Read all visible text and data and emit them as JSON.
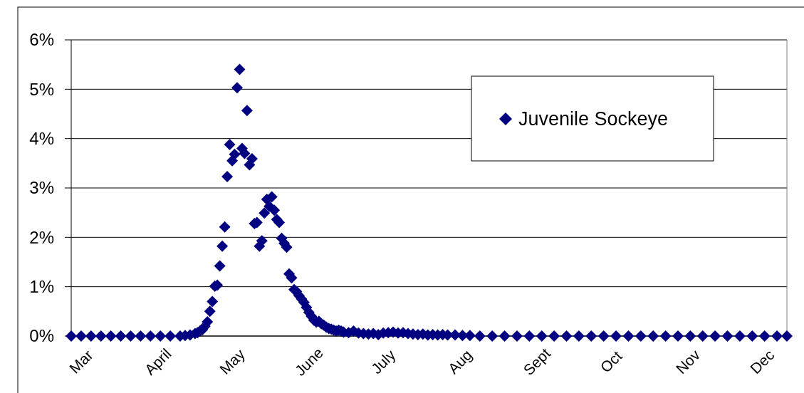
{
  "chart_data": {
    "type": "scatter",
    "marker": "diamond",
    "grid": "y",
    "legend": "top right",
    "xlim": [
      "--03-01",
      "--12-15"
    ],
    "xticks": [
      {
        "value": "--03-05",
        "label": "Mar"
      },
      {
        "value": "--04-05",
        "label": "April"
      },
      {
        "value": "--05-05",
        "label": "May"
      },
      {
        "value": "--06-05",
        "label": "June"
      },
      {
        "value": "--07-05",
        "label": "July"
      },
      {
        "value": "--08-05",
        "label": "Aug"
      },
      {
        "value": "--09-05",
        "label": "Sept"
      },
      {
        "value": "--10-05",
        "label": "Oct"
      },
      {
        "value": "--11-05",
        "label": "Nov"
      },
      {
        "value": "--12-05",
        "label": "Dec"
      }
    ],
    "ylim": [
      0,
      6
    ],
    "yticks": [
      {
        "value": 0,
        "label": "0%"
      },
      {
        "value": 1,
        "label": "1%"
      },
      {
        "value": 2,
        "label": "2%"
      },
      {
        "value": 3,
        "label": "3%"
      },
      {
        "value": 4,
        "label": "4%"
      },
      {
        "value": 5,
        "label": "5%"
      },
      {
        "value": 6,
        "label": "6%"
      }
    ],
    "series": [
      {
        "name": "Juvenile Sockeye",
        "color": "#000080",
        "x": [
          "--03-01",
          "--03-05",
          "--03-09",
          "--03-13",
          "--03-17",
          "--03-21",
          "--03-25",
          "--03-29",
          "--04-02",
          "--04-06",
          "--04-10",
          "--04-14",
          "--04-16",
          "--04-18",
          "--04-20",
          "--04-21",
          "--04-22",
          "--04-23",
          "--04-24",
          "--04-25",
          "--04-26",
          "--04-27",
          "--04-28",
          "--04-29",
          "--04-30",
          "--05-01",
          "--05-02",
          "--05-03",
          "--05-04",
          "--05-05",
          "--05-06",
          "--05-07",
          "--05-08",
          "--05-09",
          "--05-10",
          "--05-11",
          "--05-12",
          "--05-13",
          "--05-14",
          "--05-15",
          "--05-16",
          "--05-17",
          "--05-18",
          "--05-19",
          "--05-20",
          "--05-21",
          "--05-22",
          "--05-23",
          "--05-24",
          "--05-25",
          "--05-26",
          "--05-27",
          "--05-28",
          "--05-29",
          "--05-30",
          "--05-31",
          "--06-01",
          "--06-02",
          "--06-03",
          "--06-04",
          "--06-05",
          "--06-06",
          "--06-07",
          "--06-08",
          "--06-09",
          "--06-10",
          "--06-11",
          "--06-12",
          "--06-13",
          "--06-14",
          "--06-15",
          "--06-16",
          "--06-17",
          "--06-18",
          "--06-19",
          "--06-21",
          "--06-23",
          "--06-25",
          "--06-27",
          "--06-29",
          "--07-01",
          "--07-03",
          "--07-05",
          "--07-07",
          "--07-09",
          "--07-11",
          "--07-13",
          "--07-15",
          "--07-17",
          "--07-19",
          "--07-21",
          "--07-23",
          "--07-25",
          "--07-27",
          "--07-29",
          "--07-31",
          "--08-03",
          "--08-06",
          "--08-09",
          "--08-13",
          "--08-18",
          "--08-23",
          "--08-28",
          "--09-02",
          "--09-07",
          "--09-12",
          "--09-17",
          "--09-22",
          "--09-27",
          "--10-02",
          "--10-07",
          "--10-12",
          "--10-17",
          "--10-22",
          "--10-27",
          "--11-01",
          "--11-06",
          "--11-11",
          "--11-16",
          "--11-21",
          "--11-26",
          "--12-01",
          "--12-06",
          "--12-11",
          "--12-15"
        ],
        "values": [
          0,
          0,
          0,
          0,
          0,
          0,
          0,
          0,
          0,
          0,
          0,
          0,
          0.01,
          0.02,
          0.05,
          0.07,
          0.1,
          0.13,
          0.2,
          0.29,
          0.5,
          0.7,
          1.01,
          1.03,
          1.42,
          1.82,
          2.21,
          3.23,
          3.88,
          3.55,
          3.68,
          5.03,
          5.4,
          3.8,
          3.7,
          4.57,
          3.47,
          3.59,
          2.28,
          2.3,
          1.82,
          1.93,
          2.49,
          2.77,
          2.63,
          2.82,
          2.55,
          2.36,
          2.3,
          1.98,
          1.88,
          1.8,
          1.26,
          1.18,
          0.94,
          0.9,
          0.82,
          0.75,
          0.68,
          0.58,
          0.48,
          0.4,
          0.32,
          0.28,
          0.3,
          0.25,
          0.22,
          0.18,
          0.15,
          0.14,
          0.12,
          0.1,
          0.12,
          0.1,
          0.08,
          0.07,
          0.1,
          0.06,
          0.05,
          0.04,
          0.05,
          0.03,
          0.06,
          0.07,
          0.08,
          0.06,
          0.07,
          0.05,
          0.04,
          0.03,
          0.04,
          0.02,
          0.03,
          0.02,
          0.03,
          0.02,
          0.02,
          0.01,
          0.01,
          0,
          0,
          0,
          0,
          0,
          0,
          0,
          0,
          0,
          0,
          0,
          0,
          0,
          0,
          0,
          0,
          0,
          0,
          0,
          0,
          0,
          0,
          0,
          0,
          0,
          0
        ]
      }
    ]
  }
}
